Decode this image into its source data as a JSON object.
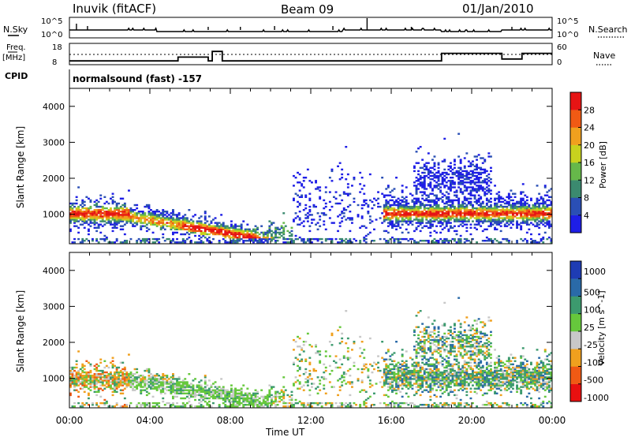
{
  "header": {
    "station": "Inuvik (fitACF)",
    "beam": "Beam 09",
    "date": "01/Jan/2010"
  },
  "strip": {
    "nsky_label": "N.Sky",
    "nsky_ticks": [
      "10^5",
      "10^0"
    ],
    "nsearch_label": "N.Search",
    "nsearch_ticks": [
      "10^5",
      "10^0"
    ],
    "freq_label": "Freq.",
    "freq_unit": "[MHz]",
    "freq_ticks": [
      "18",
      "8"
    ],
    "nave_label": "Nave",
    "nave_ticks": [
      "60",
      "0"
    ],
    "cpid_label": "CPID",
    "cpid_text": "normalsound (fast) -157"
  },
  "colors": {
    "power": [
      "#1e1ee6",
      "#2a4fb5",
      "#3b8a6f",
      "#66b84a",
      "#c8d21e",
      "#f0a01e",
      "#f05a14",
      "#e61414"
    ],
    "velocity": [
      "#e81010",
      "#f05a14",
      "#f0a01e",
      "#c8c8c8",
      "#66c83c",
      "#3c9a6e",
      "#2a6aa8",
      "#1e3cb4"
    ]
  },
  "chart_data": [
    {
      "type": "line",
      "name": "status-panel",
      "x_ticks": [
        "00:00",
        "04:00",
        "08:00",
        "12:00",
        "16:00",
        "20:00",
        "00:00"
      ],
      "nsky_baseline": 1,
      "frequency_mhz_segments": [
        {
          "start_h": 0.0,
          "end_h": 5.4,
          "mhz": 10
        },
        {
          "start_h": 5.4,
          "end_h": 6.9,
          "mhz": 12
        },
        {
          "start_h": 6.9,
          "end_h": 7.1,
          "mhz": 10
        },
        {
          "start_h": 7.1,
          "end_h": 7.6,
          "mhz": 15
        },
        {
          "start_h": 7.6,
          "end_h": 18.5,
          "mhz": 10
        },
        {
          "start_h": 18.5,
          "end_h": 21.5,
          "mhz": 14
        },
        {
          "start_h": 21.5,
          "end_h": 22.5,
          "mhz": 11
        },
        {
          "start_h": 22.5,
          "end_h": 24.0,
          "mhz": 14
        }
      ]
    },
    {
      "type": "heatmap",
      "name": "power",
      "xlabel": "",
      "ylabel": "Slant Range [km]",
      "x_ticks": [
        "00:00",
        "04:00",
        "08:00",
        "12:00",
        "16:00",
        "20:00",
        "00:00"
      ],
      "y_ticks": [
        1000,
        2000,
        3000,
        4000
      ],
      "ylim": [
        180,
        4500
      ],
      "colorbar_label": "Power [dB]",
      "colorbar_ticks": [
        4,
        8,
        12,
        16,
        20,
        24,
        28
      ],
      "colorbar_range": [
        0,
        32
      ],
      "features": [
        {
          "region": "early_band",
          "start_h": 0.0,
          "end_h": 3.0,
          "range_km": [
            400,
            1400
          ],
          "peak_db": 30
        },
        {
          "region": "descending_trace",
          "start_h": 3.0,
          "end_h": 10.0,
          "range_km": [
            200,
            900
          ],
          "peak_db": 31
        },
        {
          "region": "late_band",
          "start_h": 15.5,
          "end_h": 24.0,
          "range_km": [
            600,
            1600
          ],
          "peak_db": 30
        },
        {
          "region": "upper_patches",
          "start_h": 17.0,
          "end_h": 21.0,
          "range_km": [
            1500,
            3000
          ],
          "peak_db": 14
        }
      ]
    },
    {
      "type": "heatmap",
      "name": "velocity",
      "xlabel": "Time UT",
      "ylabel": "Slant Range [km]",
      "x_ticks": [
        "00:00",
        "04:00",
        "08:00",
        "12:00",
        "16:00",
        "20:00",
        "00:00"
      ],
      "y_ticks": [
        1000,
        2000,
        3000,
        4000
      ],
      "ylim": [
        180,
        4500
      ],
      "colorbar_label": "Velocity [m s^-1]",
      "colorbar_ticks": [
        1000,
        500,
        100,
        25,
        -25,
        -100,
        -500,
        -1000
      ],
      "features": [
        {
          "region": "early_band",
          "start_h": 0.0,
          "end_h": 3.0,
          "range_km": [
            400,
            1400
          ],
          "dominant": "-100"
        },
        {
          "region": "ground_scatter",
          "start_h": 3.0,
          "end_h": 10.0,
          "range_km": [
            200,
            900
          ],
          "dominant": "25"
        },
        {
          "region": "late_band",
          "start_h": 15.5,
          "end_h": 24.0,
          "range_km": [
            600,
            1600
          ],
          "dominant": "100"
        },
        {
          "region": "upper_patches",
          "start_h": 17.0,
          "end_h": 21.0,
          "range_km": [
            1500,
            3000
          ],
          "dominant": "100"
        }
      ]
    }
  ]
}
